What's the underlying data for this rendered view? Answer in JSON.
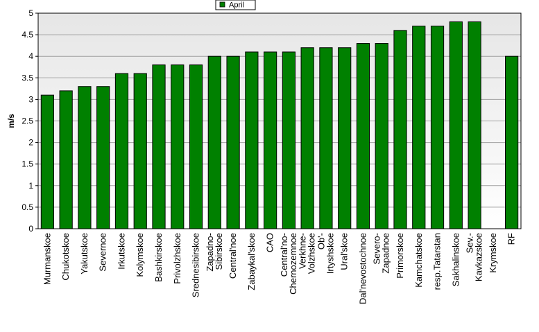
{
  "chart_data": {
    "type": "bar",
    "ylabel": "m/s",
    "ylim": [
      0,
      5
    ],
    "yticks": [
      "0",
      "0.5",
      "1",
      "1.5",
      "2",
      "2.5",
      "3",
      "3.5",
      "4",
      "4.5",
      "5"
    ],
    "grid": true,
    "legend_position": "top-center",
    "series": [
      {
        "name": "April",
        "color": "#008000",
        "values": [
          3.1,
          3.2,
          3.3,
          3.3,
          3.6,
          3.6,
          3.8,
          3.8,
          3.8,
          4.0,
          4.0,
          4.1,
          4.1,
          4.1,
          4.2,
          4.2,
          4.2,
          4.3,
          4.3,
          4.6,
          4.7,
          4.7,
          4.8,
          4.8,
          null,
          4.0
        ]
      }
    ],
    "categories": [
      "Murmanskoe",
      "Chukotskoe",
      "Yakutskoe",
      "Severnoe",
      "Irkutskoe",
      "Kolymskoe",
      "Bashkirskoe",
      "Privolzhskoe",
      "Srednesibirskoe",
      "Zapadno-\nSibirskoe",
      "Central'noe",
      "Zabaykal'skoe",
      "CAO",
      "Central'no-\nChernozemnoe",
      "Verkhne-\nVolzhskoe",
      "Ob'-\nIrtyshskoe",
      "Ural'skoe",
      "Dal'nevostochnoe",
      "Severo-\nZapadnoe",
      "Primorskoe",
      "Kamchatskoe",
      "resp.Tatarstan",
      "Sakhalinskoe",
      "Sev.-\nKavkazskoe",
      "Krymskoe",
      "RF"
    ]
  }
}
